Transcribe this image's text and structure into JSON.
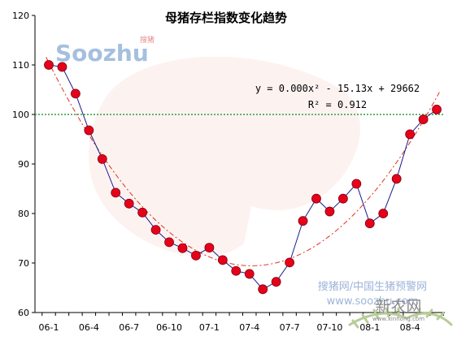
{
  "chart_data": {
    "type": "scatter",
    "title": "母猪存栏指数变化趋势",
    "xlabel": "",
    "ylabel": "",
    "ylim": [
      60,
      120
    ],
    "yticks": [
      "60",
      "70",
      "80",
      "90",
      "100",
      "110",
      "120"
    ],
    "xticks": [
      "06-1",
      "06-4",
      "06-7",
      "06-10",
      "07-1",
      "07-4",
      "07-7",
      "07-10",
      "08-1",
      "08-4"
    ],
    "reference_line": {
      "y": 100,
      "color": "#2e9e3e"
    },
    "series": [
      {
        "values": [
          110.0,
          109.6,
          104.2,
          96.8,
          91.0,
          84.2,
          82.0,
          80.2,
          76.7,
          74.2,
          73.0,
          71.5,
          73.1,
          70.6,
          68.4,
          67.8,
          64.7,
          66.2,
          70.1,
          78.5,
          83.0,
          80.4,
          83.0,
          86.0,
          78.0,
          80.0,
          87.0,
          96.0,
          99.0,
          101.0
        ],
        "line_color": "#1a1a8c",
        "marker_color": "#e8001a"
      }
    ],
    "trendline": {
      "type": "polynomial",
      "color": "#e0301e",
      "equation": "y = 0.000x² - 15.13x + 29662",
      "r_squared": "R² = 0.912"
    },
    "grid": false,
    "legend": "none"
  },
  "watermarks": {
    "logo_text": "Soozhu",
    "logo_sub": "搜猪",
    "site_cn": "搜猪网/中国生猪预警网",
    "site_url": "www.soozhu.com",
    "brand": "新农网",
    "brand_url": "www.xinnong.com"
  }
}
